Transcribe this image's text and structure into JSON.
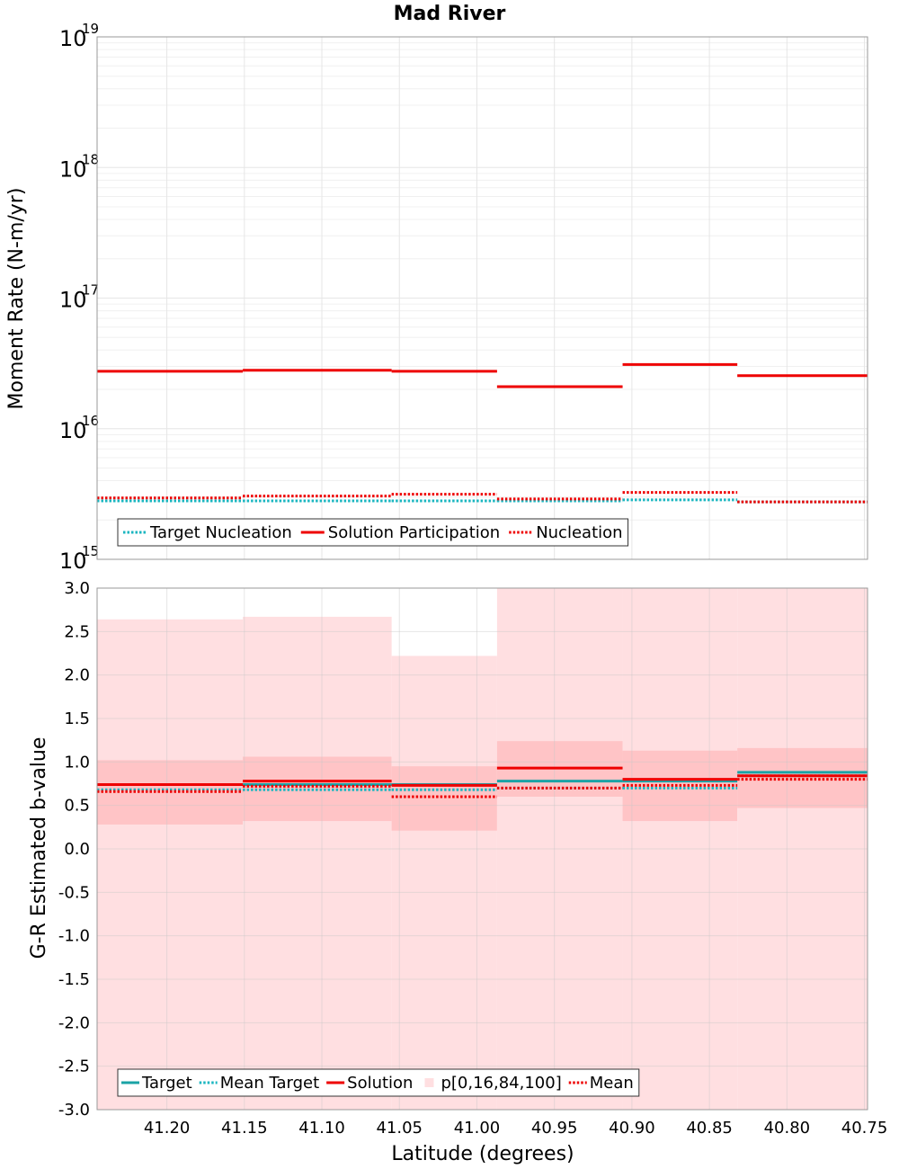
{
  "figure": {
    "title": "Mad River",
    "xlabel": "Latitude (degrees)"
  },
  "colors": {
    "target": "#1aa3a6",
    "target_dotted": "#1ab6c0",
    "solution": "#ee0000",
    "band_outer": "#ffdfe1",
    "band_inner": "#ffc4c6",
    "grid": "#e6e6e6",
    "grid_minor": "#f0f0f0",
    "axes": "#999999"
  },
  "chart_data": [
    {
      "type": "line",
      "name": "moment_rate",
      "title": "Mad River",
      "ylabel": "Moment Rate (N-m/yr)",
      "yscale": "log",
      "ylim_exp": [
        15,
        19
      ],
      "xlim": [
        41.245,
        40.748
      ],
      "x_ticks": [
        "41.20",
        "41.15",
        "41.10",
        "41.05",
        "41.00",
        "40.95",
        "40.90",
        "40.85",
        "40.80",
        "40.75"
      ],
      "y_tick_base": "10",
      "y_tick_exponents": [
        "15",
        "16",
        "17",
        "18",
        "19"
      ],
      "segment_edges": [
        41.245,
        41.151,
        41.055,
        40.987,
        40.906,
        40.832,
        40.748
      ],
      "series": [
        {
          "name": "Target Nucleation",
          "style": "dotted",
          "color": "#1ab6c0",
          "values": [
            2800000000000000.0,
            2800000000000000.0,
            2800000000000000.0,
            2800000000000000.0,
            2850000000000000.0,
            2750000000000000.0
          ]
        },
        {
          "name": "Solution Participation",
          "style": "solid",
          "color": "#ee0000",
          "values": [
            2.75e+16,
            2.8e+16,
            2.75e+16,
            2.1e+16,
            3.1e+16,
            2.55e+16
          ]
        },
        {
          "name": "Nucleation",
          "style": "dotted",
          "color": "#ee0000",
          "values": [
            2950000000000000.0,
            3050000000000000.0,
            3150000000000000.0,
            2900000000000000.0,
            3250000000000000.0,
            2750000000000000.0
          ]
        }
      ],
      "legend": [
        "Target Nucleation",
        "Solution Participation",
        "Nucleation"
      ]
    },
    {
      "type": "line",
      "name": "b_value",
      "ylabel": "G-R Estimated b-value",
      "ylim": [
        -3.0,
        3.0
      ],
      "xlim": [
        41.245,
        40.748
      ],
      "y_ticks": [
        "-3.0",
        "-2.5",
        "-2.0",
        "-1.5",
        "-1.0",
        "-0.5",
        "0.0",
        "0.5",
        "1.0",
        "1.5",
        "2.0",
        "2.5",
        "3.0"
      ],
      "x_ticks": [
        "41.20",
        "41.15",
        "41.10",
        "41.05",
        "41.00",
        "40.95",
        "40.90",
        "40.85",
        "40.80",
        "40.75"
      ],
      "segment_edges": [
        41.245,
        41.151,
        41.055,
        40.987,
        40.906,
        40.832,
        40.748
      ],
      "bands": {
        "name": "p[0,16,84,100]",
        "p0": [
          -3.0,
          -3.0,
          -3.0,
          -3.0,
          -3.0,
          -3.0
        ],
        "p16": [
          0.28,
          0.32,
          0.21,
          0.6,
          0.32,
          0.47
        ],
        "p84": [
          1.02,
          1.06,
          0.95,
          1.24,
          1.13,
          1.16
        ],
        "p100": [
          2.64,
          2.67,
          2.22,
          3.0,
          3.0,
          3.0
        ]
      },
      "series": [
        {
          "name": "Target",
          "style": "solid",
          "color": "#1aa3a6",
          "values": [
            0.74,
            0.74,
            0.74,
            0.78,
            0.78,
            0.88
          ]
        },
        {
          "name": "Mean Target",
          "style": "dotted",
          "color": "#1ab6c0",
          "values": [
            0.68,
            0.68,
            0.68,
            0.7,
            0.7,
            0.84
          ]
        },
        {
          "name": "Solution",
          "style": "solid",
          "color": "#ee0000",
          "values": [
            0.74,
            0.78,
            0.73,
            0.93,
            0.8,
            0.84
          ]
        },
        {
          "name": "Mean",
          "style": "dotted",
          "color": "#ee0000",
          "values": [
            0.66,
            0.72,
            0.6,
            0.7,
            0.73,
            0.8
          ]
        }
      ],
      "legend": [
        "Target",
        "Mean Target",
        "Solution",
        "p[0,16,84,100]",
        "Mean"
      ]
    }
  ]
}
